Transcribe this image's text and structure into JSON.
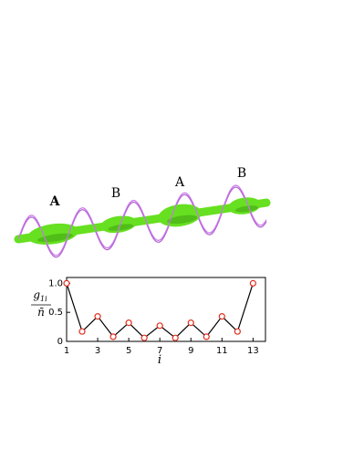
{
  "illustration": {
    "labels": [
      "A",
      "B",
      "A",
      "B"
    ]
  },
  "chart_data": {
    "type": "line",
    "x": [
      1,
      2,
      3,
      4,
      5,
      6,
      7,
      8,
      9,
      10,
      11,
      12,
      13
    ],
    "series": [
      {
        "values": [
          1.0,
          0.17,
          0.43,
          0.08,
          0.32,
          0.06,
          0.27,
          0.06,
          0.32,
          0.08,
          0.43,
          0.17,
          1.0
        ],
        "color": "#000000",
        "marker_color": "#e03020"
      }
    ],
    "xlim": [
      1,
      13.8
    ],
    "ylim": [
      0,
      1.1
    ],
    "xticks": [
      1,
      3,
      5,
      7,
      9,
      11,
      13
    ],
    "yticks": [
      0,
      0.5,
      {
        "value": 1,
        "label": "1.0"
      }
    ],
    "xlabel": "i",
    "ylabel": {
      "numerator": "g",
      "numerator_sub": "1i",
      "denominator": "n̄"
    }
  }
}
